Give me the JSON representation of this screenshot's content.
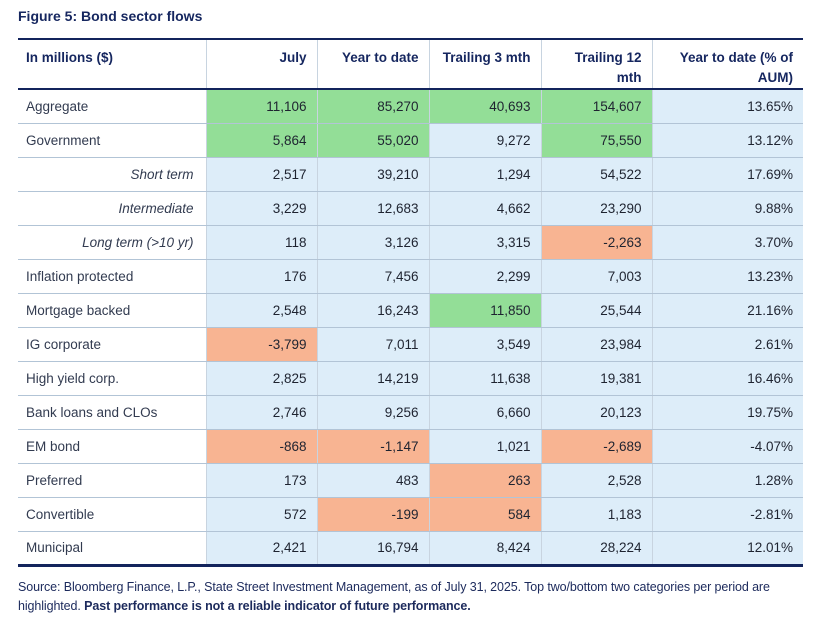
{
  "title": "Figure 5: Bond sector flows",
  "table": {
    "columns": [
      "In millions ($)",
      "July",
      "Year to date",
      "Trailing 3 mth",
      "Trailing 12 mth",
      "Year to date (% of AUM)"
    ],
    "rows": [
      {
        "label": "Aggregate",
        "italic": false,
        "cells": [
          {
            "v": "11,106",
            "hl": "pos"
          },
          {
            "v": "85,270",
            "hl": "pos"
          },
          {
            "v": "40,693",
            "hl": "pos"
          },
          {
            "v": "154,607",
            "hl": "pos"
          },
          {
            "v": "13.65%",
            "hl": ""
          }
        ]
      },
      {
        "label": "Government",
        "italic": false,
        "cells": [
          {
            "v": "5,864",
            "hl": "pos"
          },
          {
            "v": "55,020",
            "hl": "pos"
          },
          {
            "v": "9,272",
            "hl": ""
          },
          {
            "v": "75,550",
            "hl": "pos"
          },
          {
            "v": "13.12%",
            "hl": ""
          }
        ]
      },
      {
        "label": "Short term",
        "italic": true,
        "cells": [
          {
            "v": "2,517",
            "hl": ""
          },
          {
            "v": "39,210",
            "hl": ""
          },
          {
            "v": "1,294",
            "hl": ""
          },
          {
            "v": "54,522",
            "hl": ""
          },
          {
            "v": "17.69%",
            "hl": ""
          }
        ]
      },
      {
        "label": "Intermediate",
        "italic": true,
        "cells": [
          {
            "v": "3,229",
            "hl": ""
          },
          {
            "v": "12,683",
            "hl": ""
          },
          {
            "v": "4,662",
            "hl": ""
          },
          {
            "v": "23,290",
            "hl": ""
          },
          {
            "v": "9.88%",
            "hl": ""
          }
        ]
      },
      {
        "label": "Long term (>10 yr)",
        "italic": true,
        "cells": [
          {
            "v": "118",
            "hl": ""
          },
          {
            "v": "3,126",
            "hl": ""
          },
          {
            "v": "3,315",
            "hl": ""
          },
          {
            "v": "-2,263",
            "hl": "neg"
          },
          {
            "v": "3.70%",
            "hl": ""
          }
        ]
      },
      {
        "label": "Inflation protected",
        "italic": false,
        "cells": [
          {
            "v": "176",
            "hl": ""
          },
          {
            "v": "7,456",
            "hl": ""
          },
          {
            "v": "2,299",
            "hl": ""
          },
          {
            "v": "7,003",
            "hl": ""
          },
          {
            "v": "13.23%",
            "hl": ""
          }
        ]
      },
      {
        "label": "Mortgage backed",
        "italic": false,
        "cells": [
          {
            "v": "2,548",
            "hl": ""
          },
          {
            "v": "16,243",
            "hl": ""
          },
          {
            "v": "11,850",
            "hl": "pos"
          },
          {
            "v": "25,544",
            "hl": ""
          },
          {
            "v": "21.16%",
            "hl": ""
          }
        ]
      },
      {
        "label": "IG corporate",
        "italic": false,
        "cells": [
          {
            "v": "-3,799",
            "hl": "neg"
          },
          {
            "v": "7,011",
            "hl": ""
          },
          {
            "v": "3,549",
            "hl": ""
          },
          {
            "v": "23,984",
            "hl": ""
          },
          {
            "v": "2.61%",
            "hl": ""
          }
        ]
      },
      {
        "label": "High yield corp.",
        "italic": false,
        "cells": [
          {
            "v": "2,825",
            "hl": ""
          },
          {
            "v": "14,219",
            "hl": ""
          },
          {
            "v": "11,638",
            "hl": ""
          },
          {
            "v": "19,381",
            "hl": ""
          },
          {
            "v": "16.46%",
            "hl": ""
          }
        ]
      },
      {
        "label": "Bank loans and CLOs",
        "italic": false,
        "cells": [
          {
            "v": "2,746",
            "hl": ""
          },
          {
            "v": "9,256",
            "hl": ""
          },
          {
            "v": "6,660",
            "hl": ""
          },
          {
            "v": "20,123",
            "hl": ""
          },
          {
            "v": "19.75%",
            "hl": ""
          }
        ]
      },
      {
        "label": "EM bond",
        "italic": false,
        "cells": [
          {
            "v": "-868",
            "hl": "neg"
          },
          {
            "v": "-1,147",
            "hl": "neg"
          },
          {
            "v": "1,021",
            "hl": ""
          },
          {
            "v": "-2,689",
            "hl": "neg"
          },
          {
            "v": "-4.07%",
            "hl": ""
          }
        ]
      },
      {
        "label": "Preferred",
        "italic": false,
        "cells": [
          {
            "v": "173",
            "hl": ""
          },
          {
            "v": "483",
            "hl": ""
          },
          {
            "v": "263",
            "hl": "neg"
          },
          {
            "v": "2,528",
            "hl": ""
          },
          {
            "v": "1.28%",
            "hl": ""
          }
        ]
      },
      {
        "label": "Convertible",
        "italic": false,
        "cells": [
          {
            "v": "572",
            "hl": ""
          },
          {
            "v": "-199",
            "hl": "neg"
          },
          {
            "v": "584",
            "hl": "neg"
          },
          {
            "v": "1,183",
            "hl": ""
          },
          {
            "v": "-2.81%",
            "hl": ""
          }
        ]
      },
      {
        "label": "Municipal",
        "italic": false,
        "cells": [
          {
            "v": "2,421",
            "hl": ""
          },
          {
            "v": "16,794",
            "hl": ""
          },
          {
            "v": "8,424",
            "hl": ""
          },
          {
            "v": "28,224",
            "hl": ""
          },
          {
            "v": "12.01%",
            "hl": ""
          }
        ]
      }
    ]
  },
  "footer": {
    "source": "Source: Bloomberg Finance, L.P., State Street Investment Management, as of July 31, 2025. Top two/bottom two categories per period are highlighted.",
    "disclaimer": "Past performance is not a reliable indicator of future performance."
  },
  "colors": {
    "highlight_top": "#93de97",
    "highlight_bottom": "#f8b492",
    "cell_default": "#ddedf9",
    "navy_text": "#15265f",
    "table_border": "#13245c"
  }
}
